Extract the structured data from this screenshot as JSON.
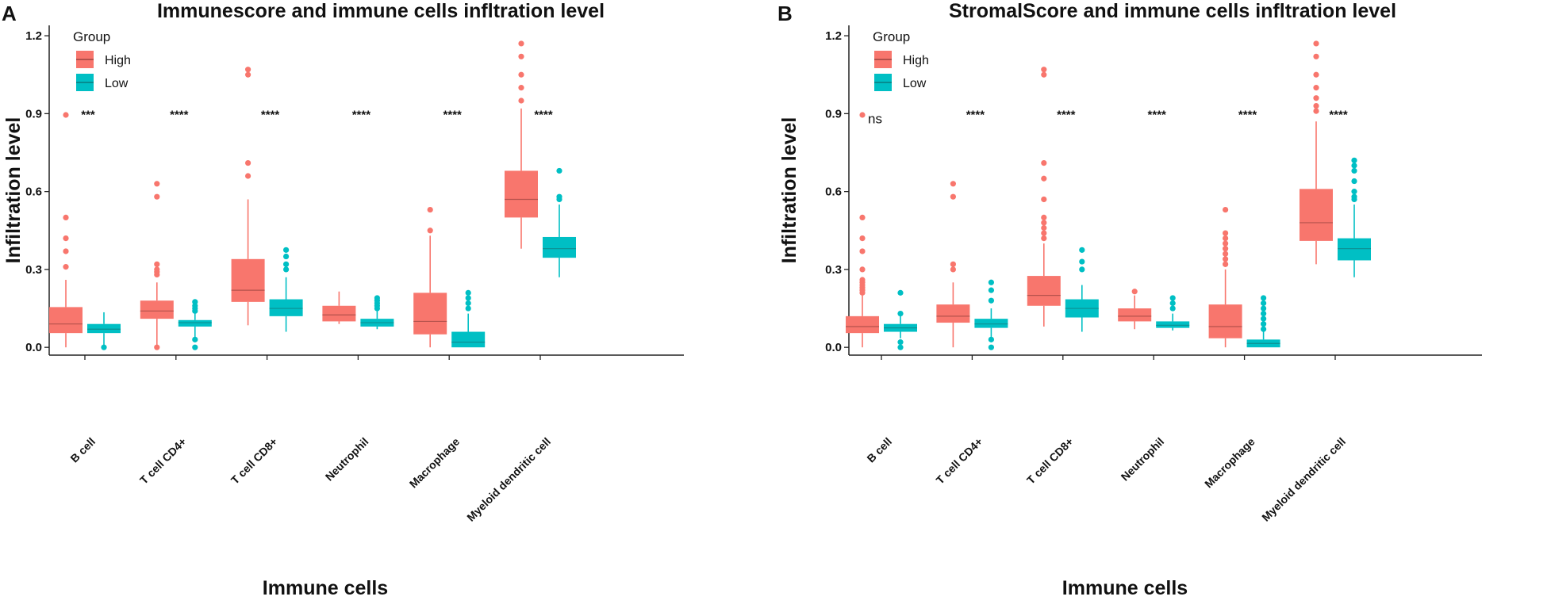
{
  "chart_data": [
    {
      "type": "box",
      "panel_label": "A",
      "title": "Immunescore and immune cells infltration level",
      "xlabel": "Immune cells",
      "ylabel": "Infiltration level",
      "ylim": [
        -0.03,
        1.24
      ],
      "yticks": [
        0.0,
        0.3,
        0.6,
        0.9,
        1.2
      ],
      "ytick_labels": [
        "0.0",
        "0.3",
        "0.6",
        "0.9",
        "1.2"
      ],
      "legend": {
        "title": "Group",
        "entries": [
          "High",
          "Low"
        ],
        "position": "top-left"
      },
      "categories": [
        "B cell",
        "T cell CD4+",
        "T cell CD8+",
        "Neutrophil",
        "Macrophage",
        "Myeloid dendritic cell"
      ],
      "significance": [
        "***",
        "****",
        "****",
        "****",
        "****",
        "****"
      ],
      "significance_y": 0.9,
      "series": [
        {
          "name": "High",
          "boxes": [
            {
              "wlo": 0.0,
              "q1": 0.055,
              "med": 0.09,
              "q3": 0.155,
              "whi": 0.26,
              "out": [
                0.31,
                0.37,
                0.42,
                0.5,
                0.895
              ]
            },
            {
              "wlo": 0.0,
              "q1": 0.11,
              "med": 0.14,
              "q3": 0.18,
              "whi": 0.25,
              "out": [
                0.0,
                0.28,
                0.29,
                0.3,
                0.32,
                0.58,
                0.63
              ]
            },
            {
              "wlo": 0.085,
              "q1": 0.175,
              "med": 0.22,
              "q3": 0.34,
              "whi": 0.57,
              "out": [
                0.66,
                0.71,
                1.05,
                1.07
              ]
            },
            {
              "wlo": 0.09,
              "q1": 0.1,
              "med": 0.125,
              "q3": 0.16,
              "whi": 0.215,
              "out": []
            },
            {
              "wlo": 0.0,
              "q1": 0.05,
              "med": 0.1,
              "q3": 0.21,
              "whi": 0.43,
              "out": [
                0.45,
                0.53
              ]
            },
            {
              "wlo": 0.38,
              "q1": 0.5,
              "med": 0.57,
              "q3": 0.68,
              "whi": 0.92,
              "out": [
                0.95,
                1.0,
                1.05,
                1.12,
                1.17
              ]
            }
          ]
        },
        {
          "name": "Low",
          "boxes": [
            {
              "wlo": 0.0,
              "q1": 0.055,
              "med": 0.07,
              "q3": 0.09,
              "whi": 0.135,
              "out": [
                0.0
              ]
            },
            {
              "wlo": 0.035,
              "q1": 0.08,
              "med": 0.095,
              "q3": 0.105,
              "whi": 0.13,
              "out": [
                0.0,
                0.03,
                0.14,
                0.15,
                0.16,
                0.175
              ]
            },
            {
              "wlo": 0.06,
              "q1": 0.12,
              "med": 0.15,
              "q3": 0.185,
              "whi": 0.27,
              "out": [
                0.3,
                0.32,
                0.35,
                0.375
              ]
            },
            {
              "wlo": 0.07,
              "q1": 0.08,
              "med": 0.095,
              "q3": 0.11,
              "whi": 0.14,
              "out": [
                0.15,
                0.16,
                0.17,
                0.18,
                0.19
              ]
            },
            {
              "wlo": 0.0,
              "q1": 0.0,
              "med": 0.02,
              "q3": 0.06,
              "whi": 0.13,
              "out": [
                0.15,
                0.17,
                0.19,
                0.21
              ]
            },
            {
              "wlo": 0.27,
              "q1": 0.345,
              "med": 0.38,
              "q3": 0.425,
              "whi": 0.55,
              "out": [
                0.57,
                0.58,
                0.68
              ]
            }
          ]
        }
      ]
    },
    {
      "type": "box",
      "panel_label": "B",
      "title": "StromalScore and immune cells infltration level",
      "xlabel": "Immune cells",
      "ylabel": "Infiltration level",
      "ylim": [
        -0.03,
        1.24
      ],
      "yticks": [
        0.0,
        0.3,
        0.6,
        0.9,
        1.2
      ],
      "ytick_labels": [
        "0.0",
        "0.3",
        "0.6",
        "0.9",
        "1.2"
      ],
      "legend": {
        "title": "Group",
        "entries": [
          "High",
          "Low"
        ],
        "position": "top-left"
      },
      "categories": [
        "B cell",
        "T cell CD4+",
        "T cell CD8+",
        "Neutrophil",
        "Macrophage",
        "Myeloid dendritic cell"
      ],
      "significance": [
        "ns",
        "****",
        "****",
        "****",
        "****",
        "****"
      ],
      "significance_y": 0.9,
      "series": [
        {
          "name": "High",
          "boxes": [
            {
              "wlo": 0.0,
              "q1": 0.055,
              "med": 0.08,
              "q3": 0.12,
              "whi": 0.2,
              "out": [
                0.21,
                0.22,
                0.23,
                0.24,
                0.25,
                0.26,
                0.3,
                0.37,
                0.42,
                0.5,
                0.895
              ]
            },
            {
              "wlo": 0.0,
              "q1": 0.095,
              "med": 0.12,
              "q3": 0.165,
              "whi": 0.25,
              "out": [
                0.3,
                0.32,
                0.58,
                0.63
              ]
            },
            {
              "wlo": 0.08,
              "q1": 0.16,
              "med": 0.2,
              "q3": 0.275,
              "whi": 0.4,
              "out": [
                0.42,
                0.44,
                0.46,
                0.48,
                0.5,
                0.57,
                0.65,
                0.71,
                1.05,
                1.07
              ]
            },
            {
              "wlo": 0.07,
              "q1": 0.1,
              "med": 0.12,
              "q3": 0.15,
              "whi": 0.2,
              "out": [
                0.215
              ]
            },
            {
              "wlo": 0.0,
              "q1": 0.035,
              "med": 0.08,
              "q3": 0.165,
              "whi": 0.3,
              "out": [
                0.32,
                0.34,
                0.36,
                0.38,
                0.4,
                0.42,
                0.44,
                0.53
              ]
            },
            {
              "wlo": 0.32,
              "q1": 0.41,
              "med": 0.48,
              "q3": 0.61,
              "whi": 0.87,
              "out": [
                0.91,
                0.93,
                0.96,
                1.0,
                1.05,
                1.12,
                1.17
              ]
            }
          ]
        },
        {
          "name": "Low",
          "boxes": [
            {
              "wlo": 0.035,
              "q1": 0.06,
              "med": 0.075,
              "q3": 0.09,
              "whi": 0.12,
              "out": [
                0.0,
                0.02,
                0.13,
                0.21
              ]
            },
            {
              "wlo": 0.04,
              "q1": 0.075,
              "med": 0.09,
              "q3": 0.11,
              "whi": 0.15,
              "out": [
                0.0,
                0.03,
                0.18,
                0.22,
                0.25
              ]
            },
            {
              "wlo": 0.06,
              "q1": 0.115,
              "med": 0.15,
              "q3": 0.185,
              "whi": 0.24,
              "out": [
                0.3,
                0.33,
                0.375
              ]
            },
            {
              "wlo": 0.065,
              "q1": 0.075,
              "med": 0.085,
              "q3": 0.1,
              "whi": 0.13,
              "out": [
                0.15,
                0.17,
                0.19
              ]
            },
            {
              "wlo": 0.0,
              "q1": 0.0,
              "med": 0.015,
              "q3": 0.03,
              "whi": 0.06,
              "out": [
                0.07,
                0.09,
                0.11,
                0.13,
                0.15,
                0.17,
                0.19
              ]
            },
            {
              "wlo": 0.27,
              "q1": 0.335,
              "med": 0.38,
              "q3": 0.42,
              "whi": 0.55,
              "out": [
                0.57,
                0.58,
                0.6,
                0.64,
                0.68,
                0.7,
                0.72
              ]
            }
          ]
        }
      ]
    }
  ],
  "colors": {
    "high": "#F8766D",
    "low": "#00BFC4",
    "median": "#555555",
    "text": "#111111"
  }
}
